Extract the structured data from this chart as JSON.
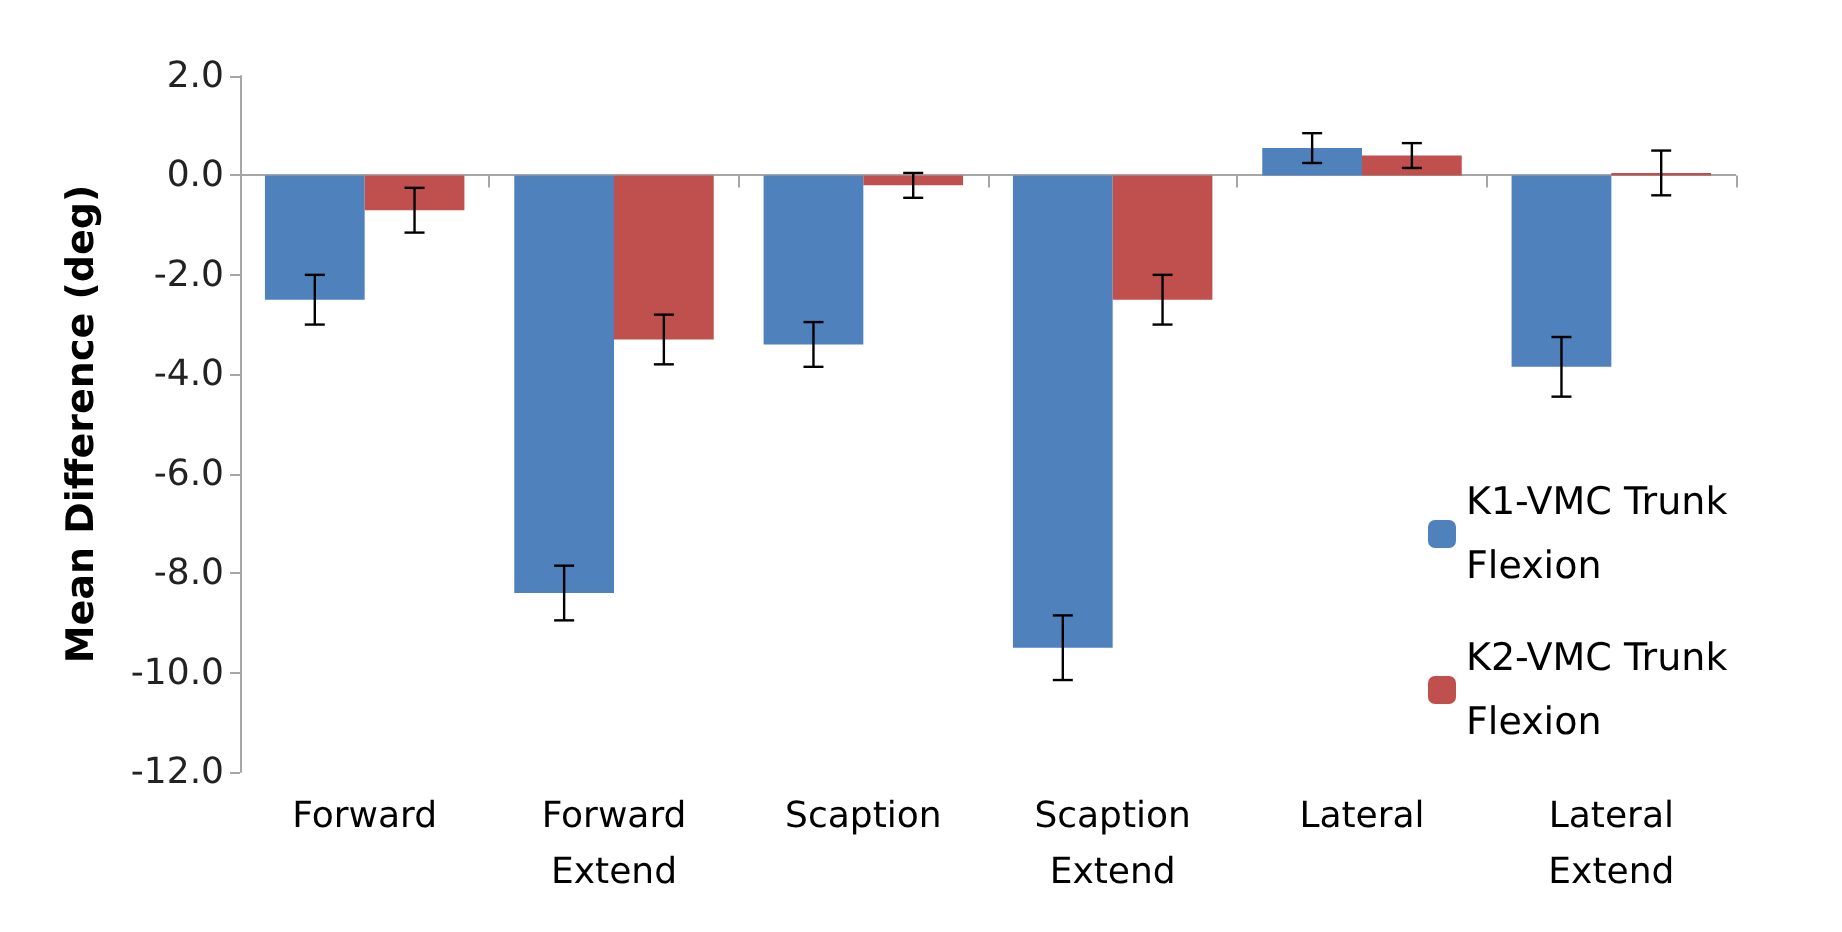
{
  "chart_data": {
    "type": "bar",
    "ylabel": "Mean Difference (deg)",
    "categories": [
      "Forward",
      "Forward\nExtend",
      "Scaption",
      "Scaption\nExtend",
      "Lateral",
      "Lateral\nExtend"
    ],
    "series": [
      {
        "name": "K1-VMC Trunk Flexion",
        "color": "#4f81bd",
        "values": [
          -2.5,
          -8.4,
          -3.4,
          -9.5,
          0.55,
          -3.85
        ],
        "errors": [
          0.5,
          0.55,
          0.45,
          0.65,
          0.3,
          0.6
        ]
      },
      {
        "name": "K2-VMC Trunk Flexion",
        "color": "#c0504d",
        "values": [
          -0.7,
          -3.3,
          -0.2,
          -2.5,
          0.4,
          0.05
        ],
        "errors": [
          0.45,
          0.5,
          0.25,
          0.5,
          0.25,
          0.45
        ]
      }
    ],
    "ylim": [
      -12,
      2
    ],
    "yticks": [
      {
        "value": -12,
        "label": "-12.0"
      },
      {
        "value": -10,
        "label": "-10.0"
      },
      {
        "value": -8,
        "label": "-8.0"
      },
      {
        "value": -6,
        "label": "-6.0"
      },
      {
        "value": -4,
        "label": "-4.0"
      },
      {
        "value": -2,
        "label": "-2.0"
      },
      {
        "value": 0,
        "label": "0.0"
      },
      {
        "value": 2,
        "label": "2.0"
      }
    ],
    "ref_lines": [
      {
        "axis": "y",
        "value": 0,
        "color": "#a6a6a6"
      }
    ],
    "grid": false,
    "legend": "right"
  }
}
